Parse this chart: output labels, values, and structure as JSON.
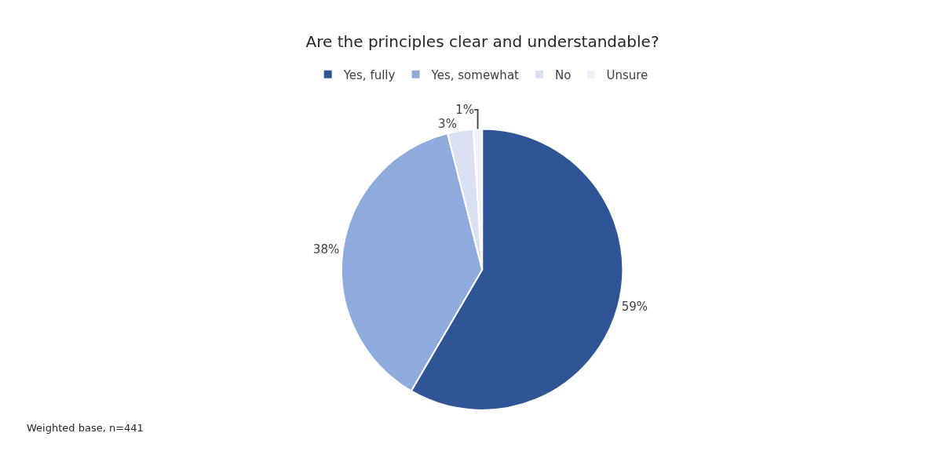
{
  "chart_data": {
    "type": "pie",
    "title": "Are the principles clear and understandable?",
    "categories": [
      "Yes, fully",
      "Yes, somewhat",
      "No",
      "Unsure"
    ],
    "values": [
      59,
      38,
      3,
      1
    ],
    "colors": [
      "#2f5597",
      "#8faadc",
      "#d9e1f2",
      "#edf1f9"
    ],
    "value_labels": [
      "59%",
      "38%",
      "3%",
      "1%"
    ],
    "legend": "top",
    "annotations": [
      "Weighted base, n=441"
    ]
  }
}
